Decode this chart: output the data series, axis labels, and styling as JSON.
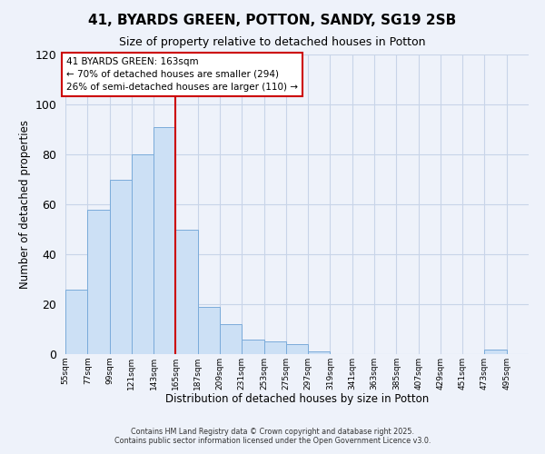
{
  "title": "41, BYARDS GREEN, POTTON, SANDY, SG19 2SB",
  "subtitle": "Size of property relative to detached houses in Potton",
  "xlabel": "Distribution of detached houses by size in Potton",
  "ylabel": "Number of detached properties",
  "bar_color": "#cce0f5",
  "bar_edge_color": "#7aabda",
  "background_color": "#eef2fa",
  "grid_color": "#c8d4e8",
  "bins": [
    55,
    77,
    99,
    121,
    143,
    165,
    187,
    209,
    231,
    253,
    275,
    297,
    319,
    341,
    363,
    385,
    407,
    429,
    451,
    473,
    495
  ],
  "values": [
    26,
    58,
    70,
    80,
    91,
    50,
    19,
    12,
    6,
    5,
    4,
    1,
    0,
    0,
    0,
    0,
    0,
    0,
    0,
    2
  ],
  "tick_labels": [
    "55sqm",
    "77sqm",
    "99sqm",
    "121sqm",
    "143sqm",
    "165sqm",
    "187sqm",
    "209sqm",
    "231sqm",
    "253sqm",
    "275sqm",
    "297sqm",
    "319sqm",
    "341sqm",
    "363sqm",
    "385sqm",
    "407sqm",
    "429sqm",
    "451sqm",
    "473sqm",
    "495sqm"
  ],
  "ylim": [
    0,
    120
  ],
  "yticks": [
    0,
    20,
    40,
    60,
    80,
    100,
    120
  ],
  "vline_x": 165,
  "vline_color": "#cc0000",
  "annotation_title": "41 BYARDS GREEN: 163sqm",
  "annotation_line1": "← 70% of detached houses are smaller (294)",
  "annotation_line2": "26% of semi-detached houses are larger (110) →",
  "annotation_box_color": "#ffffff",
  "annotation_box_edge": "#cc0000",
  "footnote1": "Contains HM Land Registry data © Crown copyright and database right 2025.",
  "footnote2": "Contains public sector information licensed under the Open Government Licence v3.0."
}
